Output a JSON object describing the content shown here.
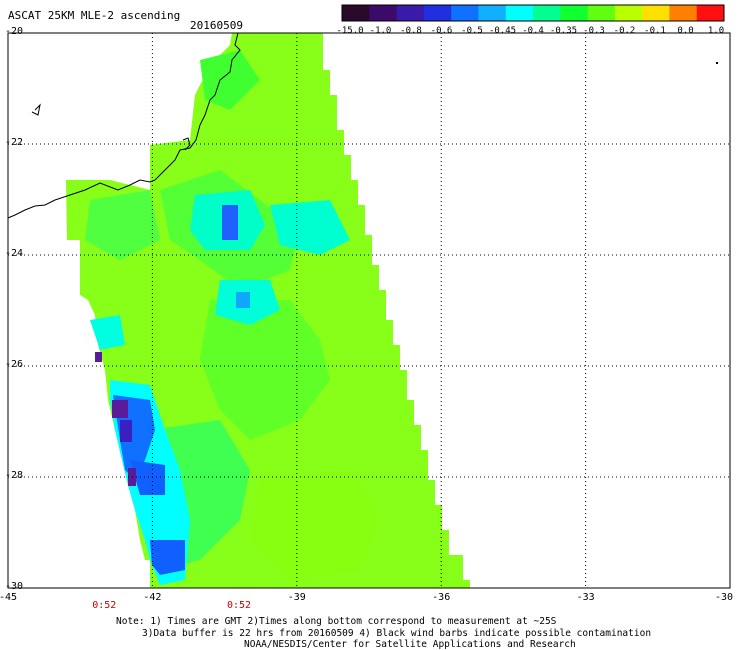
{
  "title": "ASCAT 25KM MLE-2 ascending",
  "date": "20160509",
  "colorbar": {
    "ticks": [
      "-15.0",
      "-1.0",
      "-0.8",
      "-0.6",
      "-0.5",
      "-0.45",
      "-0.4",
      "-0.35",
      "-0.3",
      "-0.2",
      "-0.1",
      "0.0",
      "1.0"
    ],
    "colors": [
      "#2a0a2a",
      "#3b0a6b",
      "#3a1aa8",
      "#2030e0",
      "#1070ff",
      "#10b0ff",
      "#00ffff",
      "#00ff90",
      "#10ff30",
      "#60ff10",
      "#b8ff00",
      "#ffe000",
      "#ff8000",
      "#ff1010"
    ]
  },
  "y_axis": {
    "labels": [
      "-20",
      "-22",
      "-24",
      "-26",
      "-28",
      "-30"
    ],
    "values": [
      -20,
      -22,
      -24,
      -26,
      -28,
      -30
    ]
  },
  "x_axis": {
    "labels": [
      "-45",
      "-42",
      "-39",
      "-36",
      "-33",
      "-30"
    ],
    "values": [
      -45,
      -42,
      -39,
      -36,
      -33,
      -30
    ]
  },
  "time_labels": [
    {
      "text": "0:52",
      "lon": -43.0
    },
    {
      "text": "0:52",
      "lon": -40.2
    }
  ],
  "notes": [
    "Note: 1) Times are GMT 2)Times along bottom correspond to measurement at ~25S",
    "3)Data buffer is 22 hrs from 20160509 4) Black wind barbs indicate possible contamination",
    "NOAA/NESDIS/Center for Satellite Applications and Research"
  ],
  "colors": {
    "dominant": "#80ff20",
    "swath_green": "#40ff30",
    "cyan": "#00ffff",
    "blue": "#1050ff",
    "purple": "#5a1a9a",
    "time_red": "#cc0000"
  }
}
